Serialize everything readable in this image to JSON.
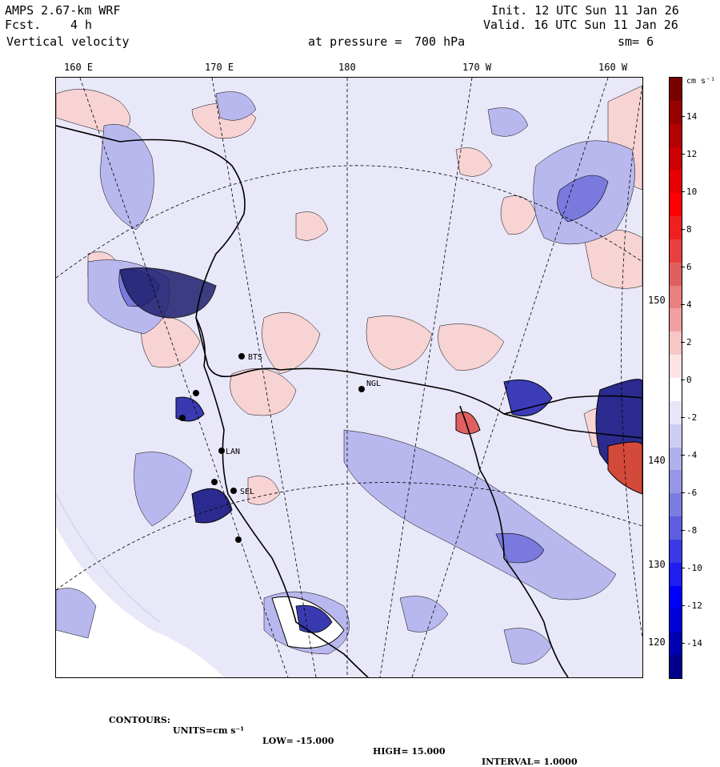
{
  "header": {
    "model": "AMPS 2.67-km WRF",
    "forecast_label": "Fcst.",
    "forecast_value": "4 h",
    "field": "Vertical velocity",
    "level_label": "at pressure =",
    "level_value": "700 hPa",
    "init": "Init. 12 UTC Sun 11 Jan 26",
    "valid": "Valid. 16 UTC Sun 11 Jan 26",
    "smoothing": "sm= 6"
  },
  "longitude_labels": [
    "160 E",
    "170 E",
    "180",
    "170 W",
    "160 W"
  ],
  "latitude_labels": [
    "150 W",
    "140 W",
    "130 W",
    "120 W"
  ],
  "stations": [
    "BTS",
    "NGL",
    "LAN",
    "SEL"
  ],
  "colorbar": {
    "units": "cm s⁻¹",
    "ticks": [
      "14",
      "12",
      "10",
      "8",
      "6",
      "4",
      "2",
      "0",
      "-2",
      "-4",
      "-6",
      "-8",
      "-10",
      "-12",
      "-14"
    ],
    "colors_top_to_bottom": [
      "#7a0000",
      "#990000",
      "#b30000",
      "#cc0000",
      "#e60000",
      "#ff0000",
      "#f02020",
      "#e84040",
      "#e06060",
      "#e88080",
      "#f0a0a0",
      "#f7c6c6",
      "#fce4e4",
      "#ffffff",
      "#e6e6f8",
      "#cdcdf2",
      "#b0b0ec",
      "#9696e6",
      "#7c7ce0",
      "#5e5ee0",
      "#3a3ae6",
      "#1e1ef0",
      "#0000ff",
      "#0000d9",
      "#0000b3",
      "#00008c"
    ]
  },
  "footer": {
    "contours": "CONTOURS:",
    "units": "UNITS=cm s⁻¹",
    "low": "LOW= -15.000",
    "high": "HIGH= 15.000",
    "interval": "INTERVAL= 1.0000"
  },
  "colors": {
    "background_field": "#e8e8f9",
    "positive_weak": "#f7d3d3",
    "negative_weak": "#b8b8ee",
    "negative_mid": "#7a7ade"
  }
}
